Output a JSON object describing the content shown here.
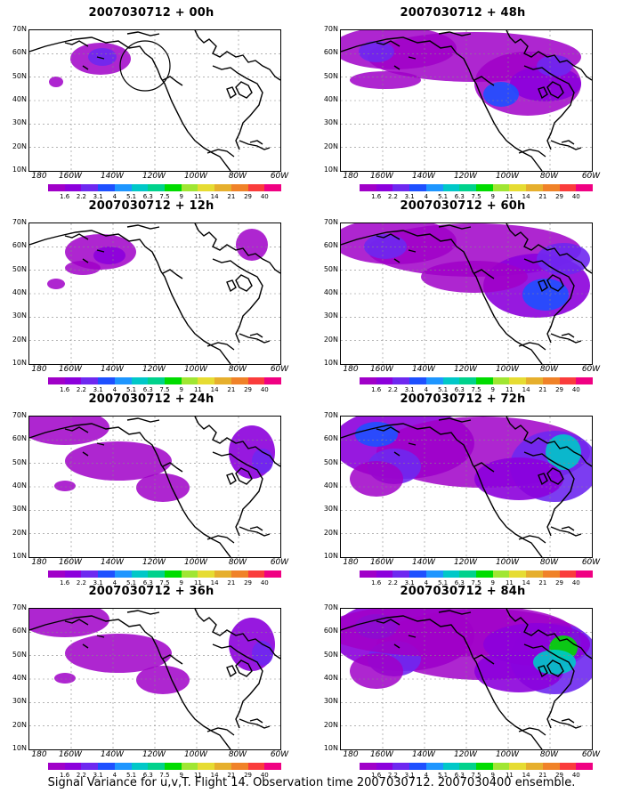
{
  "panels": [
    {
      "title": "2007030712 + 00h",
      "intensity": 0,
      "circle": true
    },
    {
      "title": "2007030712 + 48h",
      "intensity": 3,
      "circle": false
    },
    {
      "title": "2007030712 + 12h",
      "intensity": 1,
      "circle": false
    },
    {
      "title": "2007030712 + 60h",
      "intensity": 4,
      "circle": false
    },
    {
      "title": "2007030712 + 24h",
      "intensity": 2,
      "circle": false
    },
    {
      "title": "2007030712 + 72h",
      "intensity": 5,
      "circle": false
    },
    {
      "title": "2007030712 + 36h",
      "intensity": 2,
      "circle": false
    },
    {
      "title": "2007030712 + 84h",
      "intensity": 6,
      "circle": false
    }
  ],
  "lat_labels": [
    "70N",
    "60N",
    "50N",
    "40N",
    "30N",
    "20N",
    "10N"
  ],
  "lon_labels": [
    "180",
    "160W",
    "140W",
    "120W",
    "100W",
    "80W",
    "60W"
  ],
  "colorbar": {
    "labels": [
      "1.6",
      "2.2",
      "3.1",
      "4",
      "5.1",
      "6.3",
      "7.5",
      "9",
      "11",
      "14",
      "21",
      "29",
      "40"
    ],
    "colors": [
      "#a000c8",
      "#8c00dc",
      "#6e28f0",
      "#1e50ff",
      "#1e96ff",
      "#00c8c8",
      "#00d28c",
      "#00dc00",
      "#a0e632",
      "#e6dc32",
      "#e6af2d",
      "#f08228",
      "#fa3c3c",
      "#f00082"
    ]
  },
  "footer": "Signal Variance for u,v,T. Flight 14. Observation time 2007030712. 2007030400 ensemble."
}
